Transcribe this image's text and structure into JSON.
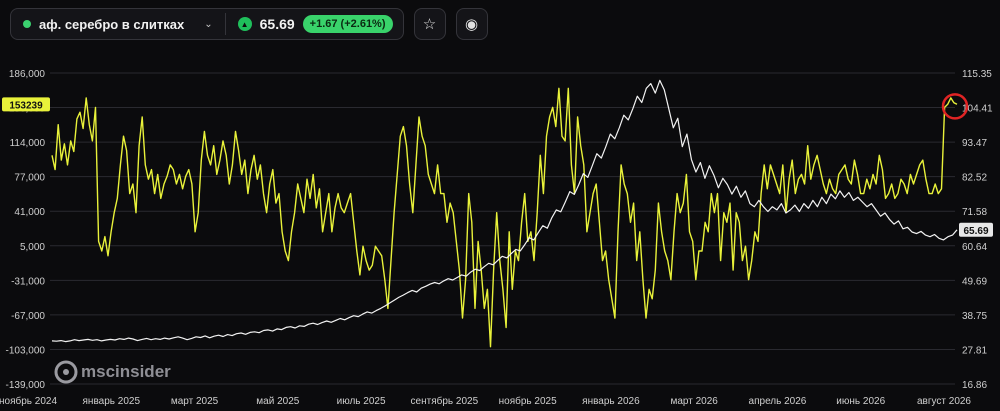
{
  "header": {
    "instrument": "аф. серебро в слитках",
    "price": "65.69",
    "change": "+1.67 (+2.61%)",
    "up_arrow": "▲",
    "chevron": "⌄",
    "star_icon": "☆",
    "eye_icon": "◉"
  },
  "watermark": {
    "text": "mscinsider"
  },
  "colors": {
    "background": "#0b0b0d",
    "yellow": "#e9f23a",
    "white": "#f2f2f2",
    "green": "#3bd16f",
    "red_circle": "#e02424"
  },
  "chart_data": {
    "type": "line",
    "x_labels": [
      "ноябрь 2024",
      "январь 2025",
      "март 2025",
      "май 2025",
      "июль 2025",
      "сентябрь 2025",
      "ноябрь 2025",
      "январь 2026",
      "март 2026",
      "апрель 2026",
      "июнь 2026",
      "август 2026"
    ],
    "left_axis": {
      "ticks": [
        "186,000",
        "150,000",
        "114,000",
        "77,000",
        "41,000",
        "5,000",
        "-31,000",
        "-67,000",
        "-103,000",
        "-139,000"
      ],
      "ylim": [
        -139000,
        186000
      ],
      "current_label": "153239"
    },
    "right_axis": {
      "ticks": [
        "115.35",
        "104.41",
        "93.47",
        "82.52",
        "71.58",
        "60.64",
        "49.69",
        "38.75",
        "27.81",
        "16.86"
      ],
      "ylim": [
        16.86,
        115.35
      ],
      "current_label": "65.69"
    },
    "series": [
      {
        "axis": "left",
        "color": "#e9f23a",
        "values": [
          100000,
          85000,
          132000,
          95000,
          112000,
          90000,
          115000,
          104000,
          138000,
          145000,
          128000,
          160000,
          132000,
          115000,
          150000,
          10000,
          0,
          15000,
          -5000,
          20000,
          40000,
          55000,
          90000,
          120000,
          105000,
          60000,
          70000,
          40000,
          110000,
          140000,
          90000,
          75000,
          85000,
          60000,
          80000,
          55000,
          70000,
          78000,
          90000,
          85000,
          70000,
          80000,
          65000,
          78000,
          85000,
          70000,
          20000,
          40000,
          95000,
          125000,
          100000,
          90000,
          110000,
          80000,
          95000,
          115000,
          100000,
          70000,
          90000,
          125000,
          105000,
          80000,
          95000,
          60000,
          85000,
          100000,
          75000,
          90000,
          60000,
          40000,
          70000,
          85000,
          50000,
          60000,
          20000,
          0,
          -10000,
          20000,
          40000,
          70000,
          55000,
          40000,
          75000,
          55000,
          80000,
          45000,
          65000,
          20000,
          40000,
          60000,
          20000,
          45000,
          60000,
          45000,
          40000,
          50000,
          60000,
          30000,
          0,
          -25000,
          5000,
          -10000,
          -20000,
          -15000,
          5000,
          0,
          -5000,
          -30000,
          -60000,
          -10000,
          40000,
          80000,
          120000,
          130000,
          110000,
          70000,
          40000,
          90000,
          140000,
          120000,
          110000,
          80000,
          70000,
          60000,
          90000,
          60000,
          60000,
          30000,
          50000,
          40000,
          10000,
          -20000,
          -70000,
          -30000,
          60000,
          30000,
          -60000,
          10000,
          -20000,
          -60000,
          -40000,
          -100000,
          -20000,
          40000,
          -10000,
          -40000,
          -80000,
          20000,
          -40000,
          0,
          -10000,
          30000,
          60000,
          10000,
          20000,
          -10000,
          40000,
          100000,
          60000,
          120000,
          140000,
          150000,
          130000,
          170000,
          120000,
          115000,
          170000,
          90000,
          60000,
          140000,
          110000,
          90000,
          20000,
          40000,
          60000,
          70000,
          30000,
          -10000,
          0,
          -30000,
          -50000,
          -70000,
          20000,
          90000,
          70000,
          60000,
          30000,
          50000,
          -10000,
          20000,
          -30000,
          -70000,
          -40000,
          -50000,
          -20000,
          50000,
          20000,
          0,
          -10000,
          -30000,
          20000,
          60000,
          40000,
          50000,
          80000,
          20000,
          10000,
          -30000,
          0,
          0,
          30000,
          20000,
          60000,
          40000,
          60000,
          -10000,
          40000,
          30000,
          50000,
          -20000,
          40000,
          30000,
          -10000,
          5000,
          -30000,
          -10000,
          20000,
          10000,
          60000,
          90000,
          65000,
          90000,
          80000,
          70000,
          60000,
          90000,
          40000,
          75000,
          95000,
          60000,
          75000,
          80000,
          70000,
          110000,
          75000,
          90000,
          100000,
          85000,
          70000,
          60000,
          75000,
          65000,
          60000,
          80000,
          85000,
          90000,
          75000,
          70000,
          95000,
          80000,
          60000,
          60000,
          75000,
          65000,
          80000,
          70000,
          100000,
          85000,
          55000,
          60000,
          70000,
          55000,
          60000,
          75000,
          70000,
          60000,
          80000,
          70000,
          80000,
          90000,
          95000,
          75000,
          60000,
          60000,
          70000,
          60000,
          65000,
          150000,
          153239,
          160000,
          155000,
          153239
        ]
      },
      {
        "axis": "right",
        "color": "#f2f2f2",
        "values": [
          30.5,
          30.4,
          30.6,
          30.3,
          30.5,
          30.9,
          30.6,
          30.8,
          31.0,
          30.7,
          30.9,
          30.5,
          30.8,
          31.0,
          30.8,
          31.2,
          31.0,
          31.4,
          31.1,
          30.6,
          31.0,
          31.3,
          30.9,
          31.2,
          31.0,
          31.4,
          31.1,
          31.5,
          31.8,
          31.4,
          30.9,
          31.3,
          31.8,
          31.6,
          32.1,
          31.5,
          32.0,
          32.3,
          31.9,
          32.5,
          32.2,
          32.8,
          33.0,
          32.6,
          33.2,
          33.4,
          33.1,
          33.8,
          34.0,
          33.6,
          34.3,
          34.1,
          34.8,
          35.0,
          34.6,
          35.3,
          35.1,
          35.8,
          36.1,
          35.7,
          36.3,
          36.8,
          36.4,
          37.0,
          37.6,
          37.2,
          37.9,
          38.5,
          38.2,
          39.0,
          39.7,
          39.3,
          40.1,
          40.8,
          41.6,
          42.5,
          43.4,
          44.3,
          45.0,
          45.8,
          46.5,
          46.0,
          47.2,
          47.8,
          48.5,
          49.0,
          48.6,
          49.5,
          50.2,
          49.8,
          50.6,
          51.4,
          51.0,
          52.3,
          53.2,
          52.8,
          54.0,
          55.1,
          54.6,
          56.0,
          57.3,
          56.8,
          58.2,
          59.5,
          59.0,
          61.0,
          63.2,
          62.5,
          64.8,
          67.0,
          66.2,
          69.5,
          72.0,
          71.4,
          74.5,
          77.8,
          76.9,
          80.0,
          83.5,
          82.3,
          86.0,
          89.8,
          88.4,
          92.0,
          96.0,
          94.5,
          98.0,
          102.0,
          100.5,
          104.0,
          108.0,
          106.0,
          110.5,
          112.0,
          109.0,
          113.0,
          110.0,
          104.0,
          98.0,
          101.0,
          92.0,
          96.0,
          88.0,
          84.0,
          87.0,
          82.0,
          86.0,
          83.0,
          79.0,
          82.0,
          80.0,
          77.0,
          79.5,
          76.0,
          78.0,
          74.0,
          73.0,
          75.0,
          73.0,
          71.5,
          73.0,
          72.0,
          74.0,
          71.0,
          72.0,
          73.5,
          71.5,
          74.0,
          72.5,
          75.0,
          73.0,
          76.0,
          74.0,
          77.0,
          75.5,
          78.0,
          76.0,
          77.5,
          75.0,
          76.0,
          74.5,
          73.0,
          74.0,
          72.0,
          70.0,
          71.0,
          69.0,
          67.5,
          68.5,
          66.0,
          66.5,
          65.0,
          64.5,
          65.2,
          64.0,
          63.5,
          64.2,
          63.0,
          62.5,
          63.5,
          64.0,
          65.69
        ]
      }
    ]
  }
}
